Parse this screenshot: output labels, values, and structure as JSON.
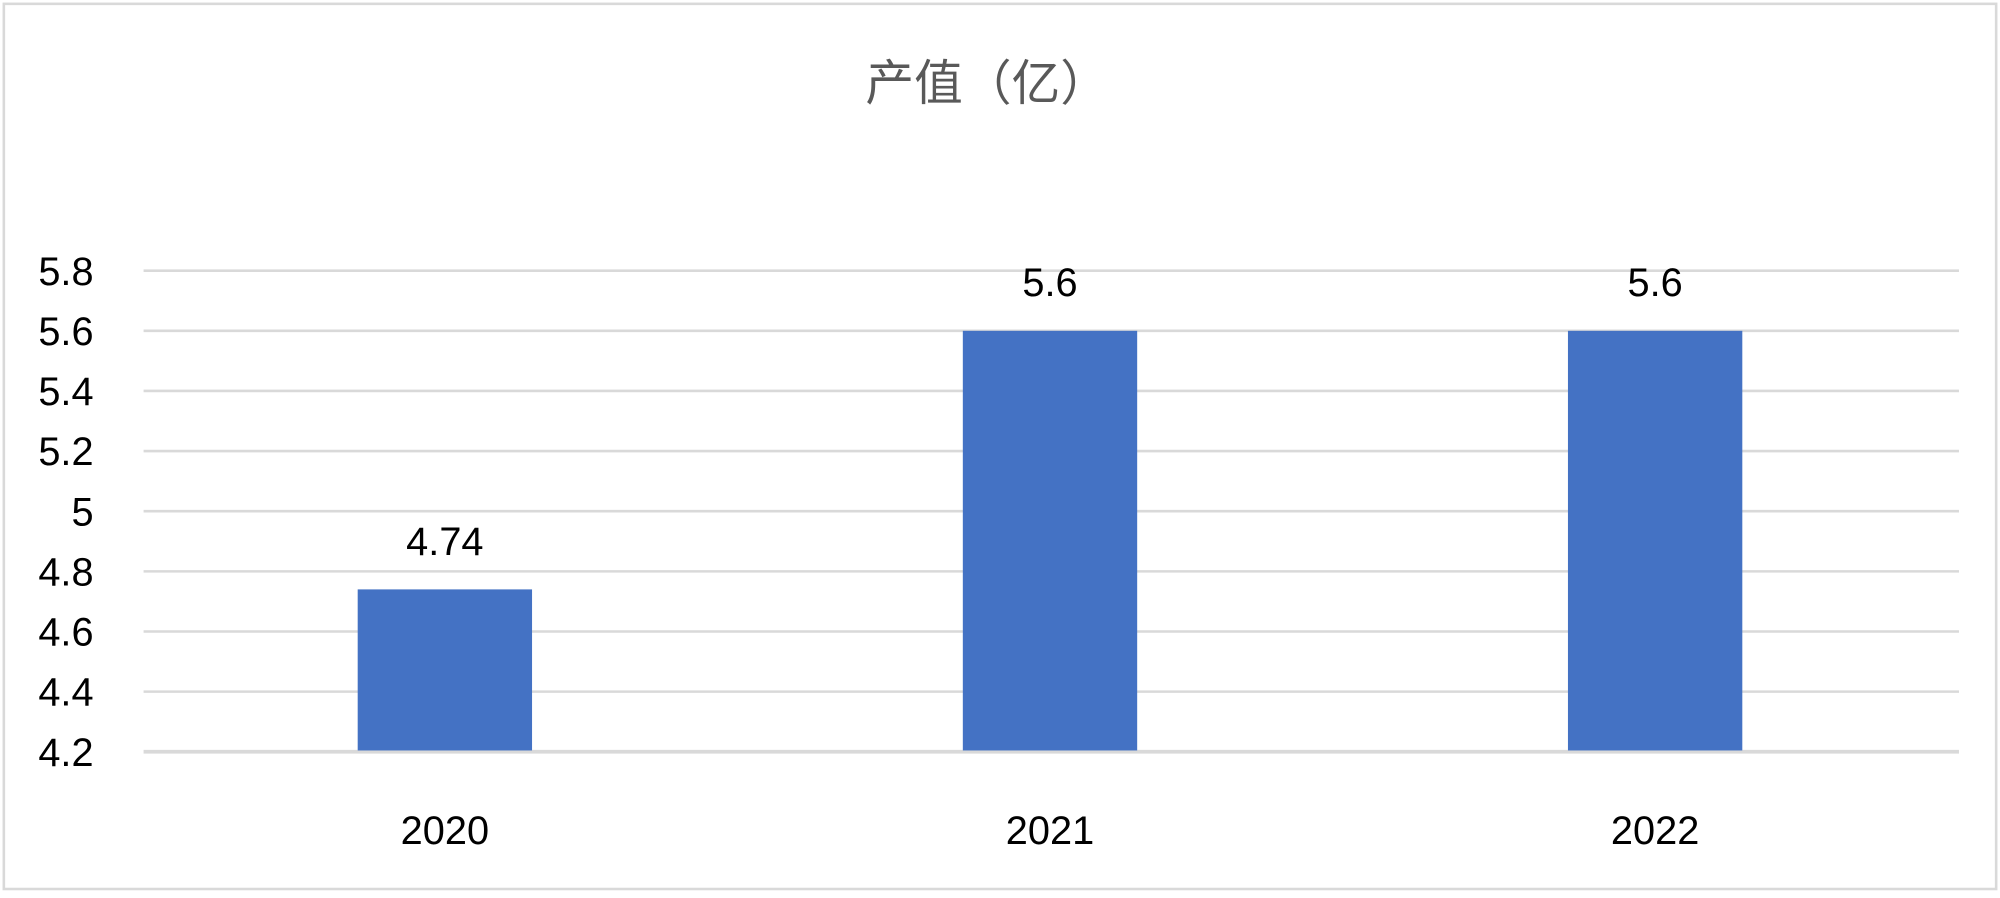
{
  "chart_data": {
    "type": "bar",
    "title": "产值（亿）",
    "categories": [
      "2020",
      "2021",
      "2022"
    ],
    "values": [
      4.74,
      5.6,
      5.6
    ],
    "data_labels": [
      "4.74",
      "5.6",
      "5.6"
    ],
    "xlabel": "",
    "ylabel": "",
    "ylim": [
      4.2,
      5.8
    ],
    "yticks": [
      "5.8",
      "5.6",
      "5.4",
      "5.2",
      "5",
      "4.8",
      "4.6",
      "4.4",
      "4.2"
    ],
    "grid": true,
    "legend": "none",
    "colors": {
      "bar": "#4472C4",
      "grid": "#D9D9D9",
      "text": "#000000",
      "title": "#595959",
      "border": "#D9D9D9"
    }
  }
}
